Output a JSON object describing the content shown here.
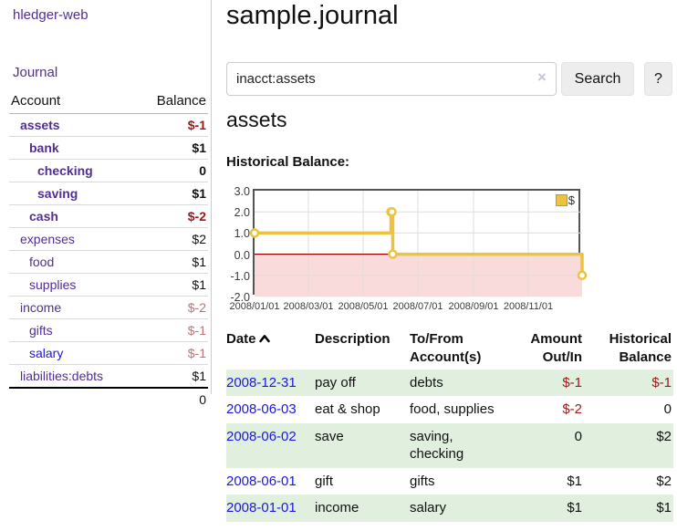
{
  "colors": {
    "purple": "#522e91",
    "blue": "#1b16e0",
    "neg_strong": "#9e1616",
    "neg_muted": "#b97575",
    "row_green": "#e1efdf",
    "chart_line": "#edc240",
    "chart_negative_fill": "#f9dbdb",
    "chart_zero_line": "#8f0000",
    "chart_border": "#545454",
    "chart_grid": "#dedede",
    "button_bg": "#ededed"
  },
  "sidebar": {
    "brand": "hledger-web",
    "journal_label": "Journal",
    "col_account": "Account",
    "col_balance": "Balance",
    "accounts": [
      {
        "name": "assets",
        "balance": "$-1",
        "level": 1,
        "bold": true
      },
      {
        "name": "bank",
        "balance": "$1",
        "level": 2,
        "bold": true
      },
      {
        "name": "checking",
        "balance": "0",
        "level": 3,
        "bold": true
      },
      {
        "name": "saving",
        "balance": "$1",
        "level": 3,
        "bold": true
      },
      {
        "name": "cash",
        "balance": "$-2",
        "level": 2,
        "bold": true
      },
      {
        "name": "expenses",
        "balance": "$2",
        "level": 1,
        "bold": false
      },
      {
        "name": "food",
        "balance": "$1",
        "level": 2,
        "bold": false
      },
      {
        "name": "supplies",
        "balance": "$1",
        "level": 2,
        "bold": false
      },
      {
        "name": "income",
        "balance": "$-2",
        "level": 1,
        "bold": false
      },
      {
        "name": "gifts",
        "balance": "$-1",
        "level": 2,
        "bold": false
      },
      {
        "name": "salary",
        "balance": "$-1",
        "level": 2,
        "bold": false,
        "blue": true
      },
      {
        "name": "liabilities:debts",
        "balance": "$1",
        "level": 1,
        "bold": false
      }
    ],
    "total": "0"
  },
  "main": {
    "title": "sample.journal",
    "search": {
      "value": "inacct:assets",
      "placeholder": "",
      "clear": "×",
      "button": "Search",
      "help": "?"
    },
    "account_title": "assets",
    "chart_heading": "Historical Balance:"
  },
  "chart_data": {
    "type": "line",
    "step": true,
    "title": "Historical Balance:",
    "series": [
      {
        "name": "$",
        "points": [
          {
            "date": "2008-01-01",
            "value": 1
          },
          {
            "date": "2008-06-01",
            "value": 2
          },
          {
            "date": "2008-06-02",
            "value": 2
          },
          {
            "date": "2008-06-03",
            "value": 0
          },
          {
            "date": "2008-12-31",
            "value": -1
          }
        ]
      }
    ],
    "x_range": [
      "2008-01-01",
      "2008-12-31"
    ],
    "x_tick_labels": [
      "2008/01/01",
      "2008/03/01",
      "2008/05/01",
      "2008/07/01",
      "2008/09/01",
      "2008/11/01"
    ],
    "y_ticks": [
      3.0,
      2.0,
      1.0,
      0.0,
      -1.0,
      -2.0
    ],
    "y_tick_labels": [
      "3.0",
      "2.0",
      "1.0",
      "0.0",
      "-1.0",
      "-2.0"
    ],
    "ylim": [
      -2,
      3
    ],
    "legend": {
      "label": "$",
      "position": "top-right"
    },
    "negative_region_shaded": true,
    "grid": true
  },
  "register": {
    "headers": {
      "date": "Date",
      "description": "Description",
      "accounts": "To/From Account(s)",
      "amount": "Amount Out/In",
      "balance": "Historical Balance"
    },
    "sort": {
      "column": "Date",
      "direction": "ascending"
    },
    "rows": [
      {
        "date": "2008-12-31",
        "description": "pay off",
        "accounts": "debts",
        "amount": "$-1",
        "balance": "$-1"
      },
      {
        "date": "2008-06-03",
        "description": "eat & shop",
        "accounts": "food, supplies",
        "amount": "$-2",
        "balance": "0"
      },
      {
        "date": "2008-06-02",
        "description": "save",
        "accounts": "saving, checking",
        "amount": "0",
        "balance": "$2"
      },
      {
        "date": "2008-06-01",
        "description": "gift",
        "accounts": "gifts",
        "amount": "$1",
        "balance": "$2"
      },
      {
        "date": "2008-01-01",
        "description": "income",
        "accounts": "salary",
        "amount": "$1",
        "balance": "$1"
      }
    ]
  }
}
